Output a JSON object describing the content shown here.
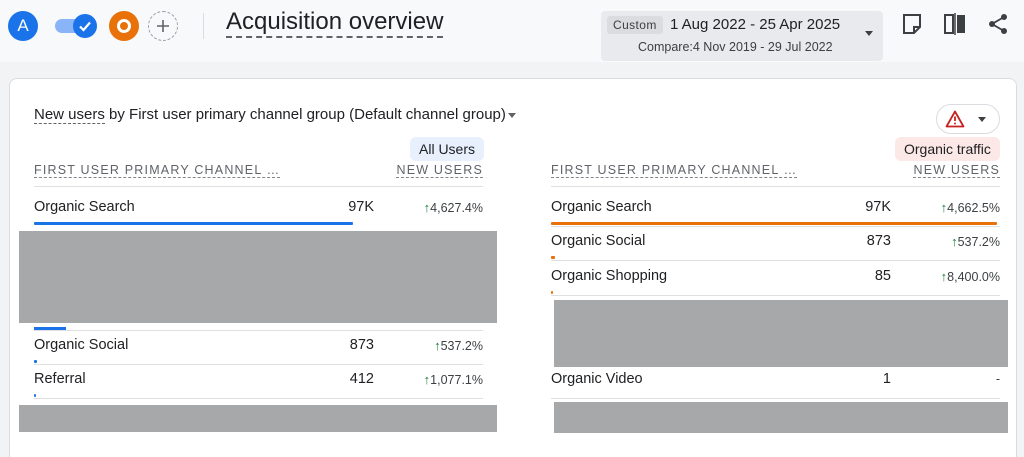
{
  "header": {
    "avatar_a_label": "A",
    "title": "Acquisition overview",
    "date_range": {
      "chip": "Custom",
      "main": "1 Aug 2022 - 25 Apr 2025",
      "compare": "Compare:4 Nov 2019 - 29 Jul 2022"
    },
    "icons": [
      "check-icon",
      "add-icon",
      "insights-icon",
      "compare-icon",
      "share-icon",
      "chevron-down-icon"
    ]
  },
  "card": {
    "title_metric": "New users",
    "title_rest": " by First user primary channel group (Default channel group)",
    "left": {
      "segment": "All Users",
      "col_dim": "FIRST USER PRIMARY CHANNEL …",
      "col_metric": "NEW USERS",
      "rows": [
        {
          "name": "Organic Search",
          "value": "97K",
          "change": "4,627.4%",
          "bar_fraction": 1.0
        },
        {
          "name": "Organic Social",
          "value": "873",
          "change": "537.2%",
          "bar_fraction": 0.009
        },
        {
          "name": "Referral",
          "value": "412",
          "change": "1,077.1%",
          "bar_fraction": 0.004
        }
      ],
      "hidden_row_bar_fraction": 0.1
    },
    "right": {
      "segment": "Organic traffic",
      "col_dim": "FIRST USER PRIMARY CHANNEL …",
      "col_metric": "NEW USERS",
      "rows": [
        {
          "name": "Organic Search",
          "value": "97K",
          "change": "4,662.5%",
          "bar_fraction": 1.0
        },
        {
          "name": "Organic Social",
          "value": "873",
          "change": "537.2%",
          "bar_fraction": 0.009
        },
        {
          "name": "Organic Shopping",
          "value": "85",
          "change": "8,400.0%",
          "bar_fraction": 0.001
        },
        {
          "name": "Organic Video",
          "value": "1",
          "change": "-",
          "bar_fraction": 0
        }
      ]
    },
    "colors": {
      "left_bar": "#1a73e8",
      "right_bar": "#e8710a",
      "up_arrow": "#188038",
      "warning": "#c5221f"
    }
  }
}
